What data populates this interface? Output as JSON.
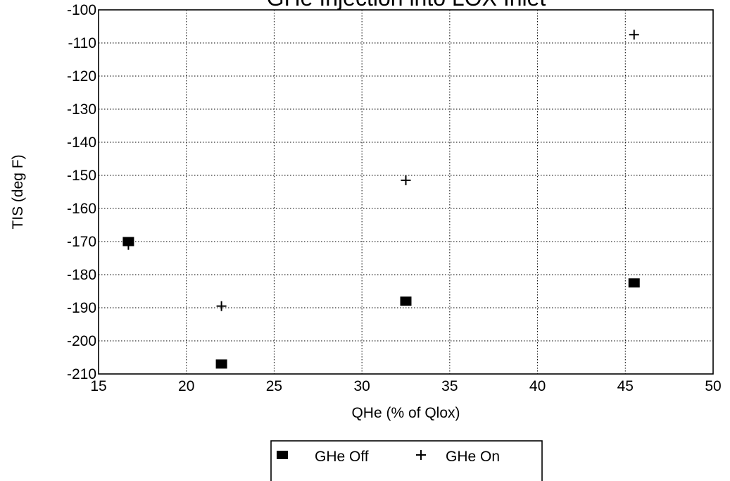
{
  "chart_data": {
    "type": "scatter",
    "title": "GHe Injection into LOX Inlet",
    "xlabel": "QHe (% of Qlox)",
    "ylabel": "TIS (deg F)",
    "xlim": [
      15,
      50
    ],
    "ylim": [
      -210,
      -100
    ],
    "xticks": [
      15,
      20,
      25,
      30,
      35,
      40,
      45,
      50
    ],
    "yticks": [
      -100,
      -110,
      -120,
      -130,
      -140,
      -150,
      -160,
      -170,
      -180,
      -190,
      -200,
      -210
    ],
    "grid": true,
    "legend_position": "bottom-center",
    "series": [
      {
        "name": "GHe Off",
        "marker": "square",
        "color": "#000000",
        "points": [
          {
            "x": 16.7,
            "y": -170
          },
          {
            "x": 22.0,
            "y": -207
          },
          {
            "x": 32.5,
            "y": -188
          },
          {
            "x": 45.5,
            "y": -182.5
          }
        ]
      },
      {
        "name": "GHe On",
        "marker": "plus",
        "color": "#000000",
        "points": [
          {
            "x": 16.7,
            "y": -171
          },
          {
            "x": 22.0,
            "y": -189.5
          },
          {
            "x": 32.5,
            "y": -151.5
          },
          {
            "x": 45.5,
            "y": -107.5
          }
        ]
      }
    ]
  }
}
